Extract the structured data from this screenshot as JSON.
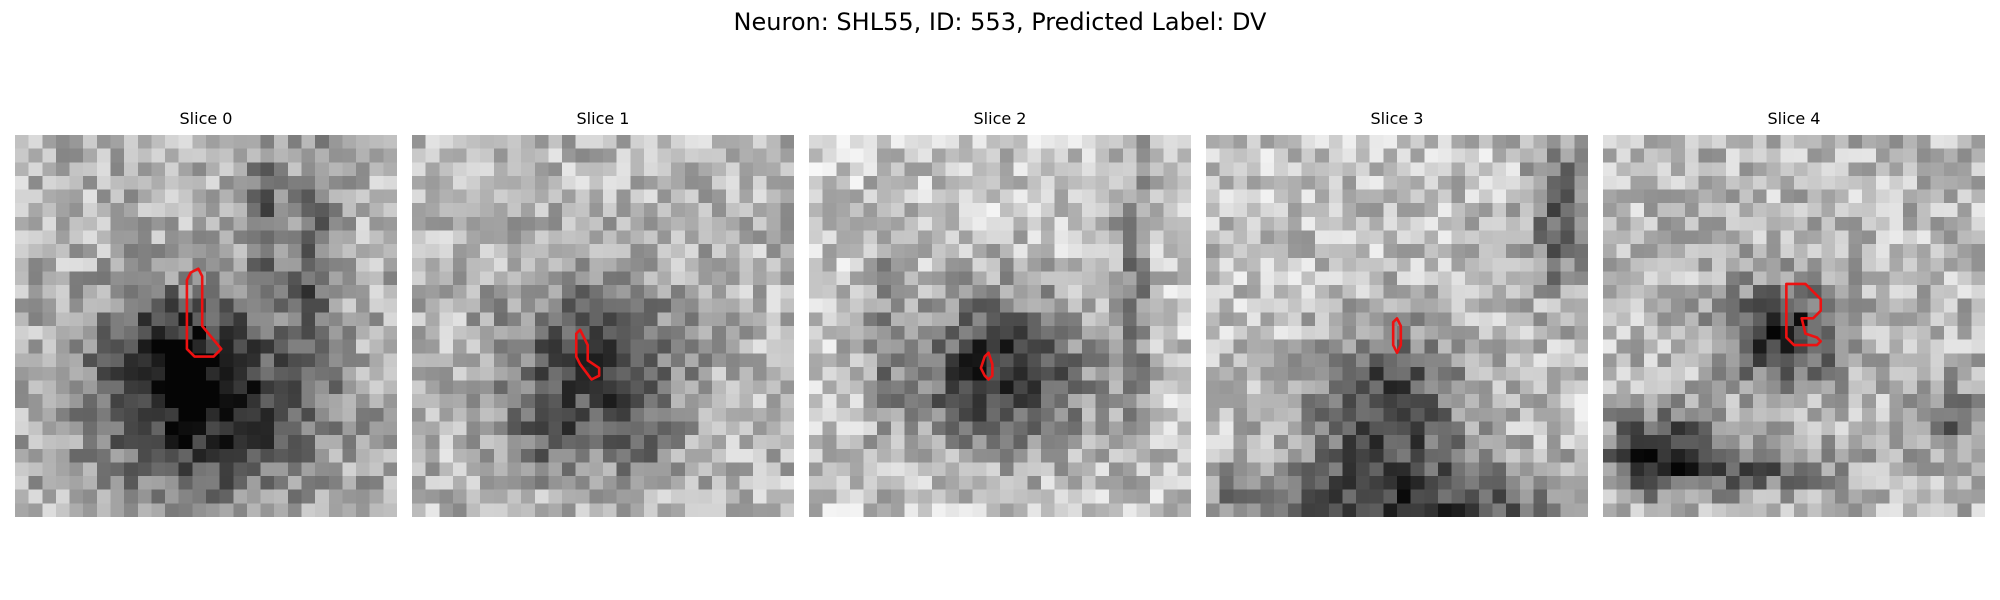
{
  "figure": {
    "title": "Neuron: SHL55, ID: 553, Predicted Label: DV"
  },
  "panels": [
    {
      "title": "Slice 0",
      "seed": 11,
      "blobs": [
        [
          0.5,
          0.7,
          0.28,
          0.24,
          0.62
        ],
        [
          0.4,
          0.55,
          0.16,
          0.14,
          0.25
        ],
        [
          0.78,
          0.35,
          0.06,
          0.3,
          0.3
        ],
        [
          0.66,
          0.2,
          0.05,
          0.18,
          0.3
        ]
      ],
      "base": 0.7,
      "contour": [
        [
          0.46,
          0.36
        ],
        [
          0.48,
          0.35
        ],
        [
          0.49,
          0.37
        ],
        [
          0.49,
          0.5
        ],
        [
          0.54,
          0.56
        ],
        [
          0.52,
          0.58
        ],
        [
          0.47,
          0.58
        ],
        [
          0.45,
          0.56
        ],
        [
          0.45,
          0.38
        ]
      ]
    },
    {
      "title": "Slice 1",
      "seed": 23,
      "blobs": [
        [
          0.48,
          0.6,
          0.22,
          0.22,
          0.48
        ],
        [
          0.35,
          0.8,
          0.12,
          0.1,
          0.2
        ],
        [
          0.6,
          0.8,
          0.1,
          0.1,
          0.15
        ]
      ],
      "base": 0.72,
      "contour": [
        [
          0.43,
          0.52
        ],
        [
          0.44,
          0.51
        ],
        [
          0.46,
          0.55
        ],
        [
          0.46,
          0.59
        ],
        [
          0.49,
          0.61
        ],
        [
          0.49,
          0.63
        ],
        [
          0.47,
          0.64
        ],
        [
          0.44,
          0.6
        ],
        [
          0.43,
          0.58
        ]
      ]
    },
    {
      "title": "Slice 2",
      "seed": 37,
      "blobs": [
        [
          0.5,
          0.62,
          0.23,
          0.2,
          0.62
        ],
        [
          0.85,
          0.4,
          0.05,
          0.4,
          0.25
        ],
        [
          0.2,
          0.5,
          0.05,
          0.3,
          0.18
        ]
      ],
      "base": 0.78,
      "contour": [
        [
          0.46,
          0.58
        ],
        [
          0.47,
          0.57
        ],
        [
          0.48,
          0.6
        ],
        [
          0.48,
          0.63
        ],
        [
          0.47,
          0.64
        ],
        [
          0.46,
          0.63
        ],
        [
          0.45,
          0.61
        ]
      ]
    },
    {
      "title": "Slice 3",
      "seed": 51,
      "blobs": [
        [
          0.48,
          0.72,
          0.2,
          0.2,
          0.52
        ],
        [
          0.5,
          0.98,
          0.6,
          0.12,
          0.45
        ],
        [
          0.93,
          0.2,
          0.08,
          0.22,
          0.4
        ]
      ],
      "base": 0.76,
      "contour": [
        [
          0.49,
          0.49
        ],
        [
          0.5,
          0.48
        ],
        [
          0.51,
          0.5
        ],
        [
          0.51,
          0.55
        ],
        [
          0.5,
          0.57
        ],
        [
          0.49,
          0.55
        ],
        [
          0.49,
          0.51
        ]
      ]
    },
    {
      "title": "Slice 4",
      "seed": 67,
      "blobs": [
        [
          0.47,
          0.52,
          0.15,
          0.13,
          0.6
        ],
        [
          0.15,
          0.83,
          0.14,
          0.1,
          0.6
        ],
        [
          0.4,
          0.88,
          0.22,
          0.06,
          0.35
        ],
        [
          0.9,
          0.75,
          0.08,
          0.1,
          0.3
        ]
      ],
      "base": 0.73,
      "contour": [
        [
          0.48,
          0.39
        ],
        [
          0.53,
          0.39
        ],
        [
          0.57,
          0.43
        ],
        [
          0.57,
          0.46
        ],
        [
          0.55,
          0.48
        ],
        [
          0.52,
          0.48
        ],
        [
          0.53,
          0.52
        ],
        [
          0.56,
          0.53
        ],
        [
          0.57,
          0.54
        ],
        [
          0.56,
          0.55
        ],
        [
          0.5,
          0.55
        ],
        [
          0.48,
          0.53
        ],
        [
          0.48,
          0.4
        ]
      ]
    }
  ],
  "colors": {
    "contour": "#ee1111"
  }
}
